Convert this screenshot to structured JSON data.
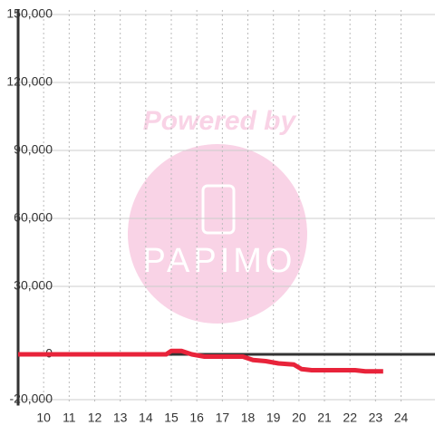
{
  "chart_data": {
    "type": "line",
    "x": [
      9,
      14.8,
      15,
      15.4,
      15.8,
      16.3,
      16.5,
      17.8,
      18.2,
      18.7,
      19.2,
      19.8,
      20.1,
      20.5,
      22.2,
      22.6,
      23.3
    ],
    "series": [
      {
        "color": "#e8233a",
        "values": [
          0,
          0,
          1500,
          1500,
          0,
          -1000,
          -1000,
          -1000,
          -2500,
          -3000,
          -4000,
          -4500,
          -6500,
          -7000,
          -7000,
          -7500,
          -7500
        ]
      }
    ],
    "xlim": [
      9,
      25.33
    ],
    "xticks": [
      10,
      11,
      12,
      13,
      14,
      15,
      16,
      17,
      18,
      19,
      20,
      21,
      22,
      23,
      24
    ],
    "ylim": [
      -21000,
      152000
    ],
    "yticks": [
      {
        "value": -20000,
        "label": "-20,000"
      },
      0,
      {
        "value": 30000,
        "label": "30,000"
      },
      {
        "value": 60000,
        "label": "60,000"
      },
      {
        "value": 90000,
        "label": "90,000"
      },
      {
        "value": 120000,
        "label": "120,000"
      },
      {
        "value": 150000,
        "label": "150,000"
      }
    ],
    "grid": true
  },
  "watermark": {
    "line1": "Powered by",
    "line2": "PAPIMO"
  }
}
